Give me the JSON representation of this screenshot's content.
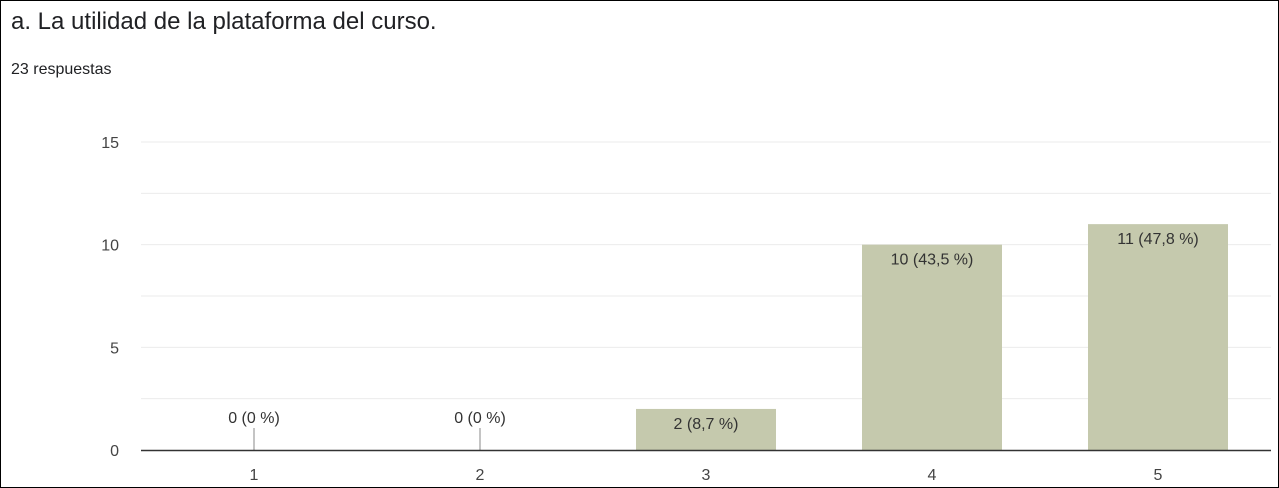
{
  "question": {
    "title": "a. La utilidad de la plataforma del curso.",
    "responses": "23 respuestas"
  },
  "colors": {
    "bar": "#c5c9ad",
    "grid": "#ebebeb",
    "axis": "#333333",
    "text": "#444444"
  },
  "chart_data": {
    "type": "bar",
    "title": "a. La utilidad de la plataforma del curso.",
    "xlabel": "",
    "ylabel": "",
    "categories": [
      "1",
      "2",
      "3",
      "4",
      "5"
    ],
    "values": [
      0,
      0,
      2,
      10,
      11
    ],
    "data_labels": [
      "0 (0 %)",
      "0 (0 %)",
      "2 (8,7 %)",
      "10 (43,5 %)",
      "11 (47,8 %)"
    ],
    "y_ticks": [
      "0",
      "5",
      "10",
      "15"
    ],
    "ylim": [
      0,
      15
    ],
    "grid": true,
    "legend": "none"
  }
}
